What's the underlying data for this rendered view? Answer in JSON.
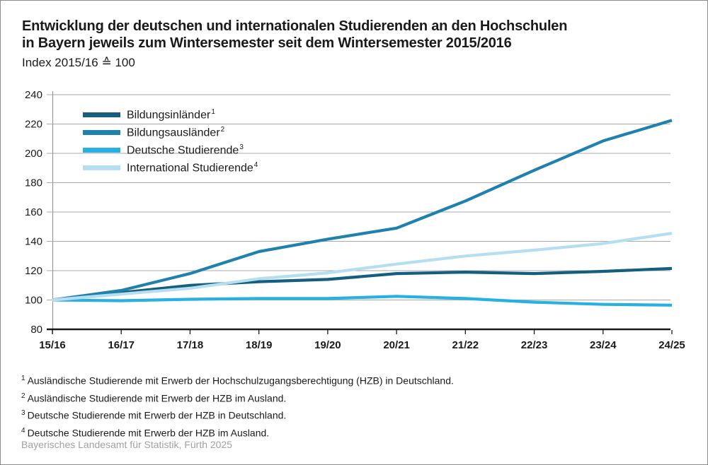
{
  "header": {
    "title_line1": "Entwicklung der deutschen und internationalen Studierenden an den Hochschulen",
    "title_line2": "in Bayern jeweils zum Wintersemester seit dem Wintersemester 2015/2016",
    "subtitle": "Index 2015/16 ≙ 100"
  },
  "chart_data": {
    "type": "line",
    "title": "Entwicklung der deutschen und internationalen Studierenden an den Hochschulen in Bayern jeweils zum Wintersemester seit dem Wintersemester 2015/2016",
    "subtitle": "Index 2015/16 ≙ 100",
    "categories": [
      "15/16",
      "16/17",
      "17/18",
      "18/19",
      "19/20",
      "20/21",
      "21/22",
      "22/23",
      "23/24",
      "24/25"
    ],
    "y_ticks": [
      240,
      220,
      200,
      180,
      160,
      140,
      120,
      100,
      80
    ],
    "ylim": [
      80,
      240
    ],
    "grid": true,
    "legend_position": "top-left-inside",
    "axis_colors": {
      "grid": "#aaaaaa",
      "y_axis": "#8f8f8f",
      "x_axis": "#1a1a1a",
      "tick_text": "#1a1a1a"
    },
    "series": [
      {
        "name": "Bildungsinländer",
        "sup": "1",
        "color": "#155e7f",
        "values": [
          100,
          105,
          110,
          112.5,
          114,
          118,
          119,
          118,
          119.5,
          121.5
        ]
      },
      {
        "name": "Bildungsausländer",
        "sup": "2",
        "color": "#1f81ae",
        "values": [
          100,
          106.5,
          118,
          133,
          141.5,
          149,
          167.5,
          188.5,
          208.5,
          222.5
        ]
      },
      {
        "name": "Deutsche Studierende",
        "sup": "3",
        "color": "#29b0e2",
        "values": [
          100,
          99.5,
          100.5,
          101,
          101,
          102.5,
          101,
          98.5,
          97,
          96.5
        ]
      },
      {
        "name": "International Studierende",
        "sup": "4",
        "color": "#b6def1",
        "values": [
          100,
          104,
          108,
          114.5,
          118.5,
          124.5,
          130,
          134,
          138.5,
          145.5
        ]
      }
    ]
  },
  "footnotes": [
    {
      "sup": "1",
      "text": "Ausländische Studierende mit Erwerb der Hochschulzugangsberechtigung (HZB) in Deutschland."
    },
    {
      "sup": "2",
      "text": "Ausländische Studierende mit Erwerb der HZB im Ausland."
    },
    {
      "sup": "3",
      "text": "Deutsche Studierende mit Erwerb der HZB in Deutschland."
    },
    {
      "sup": "4",
      "text": "Deutsche Studierende mit Erwerb der HZB im Ausland."
    }
  ],
  "footer": {
    "source": "Bayerisches Landesamt für Statistik, Fürth 2025"
  }
}
